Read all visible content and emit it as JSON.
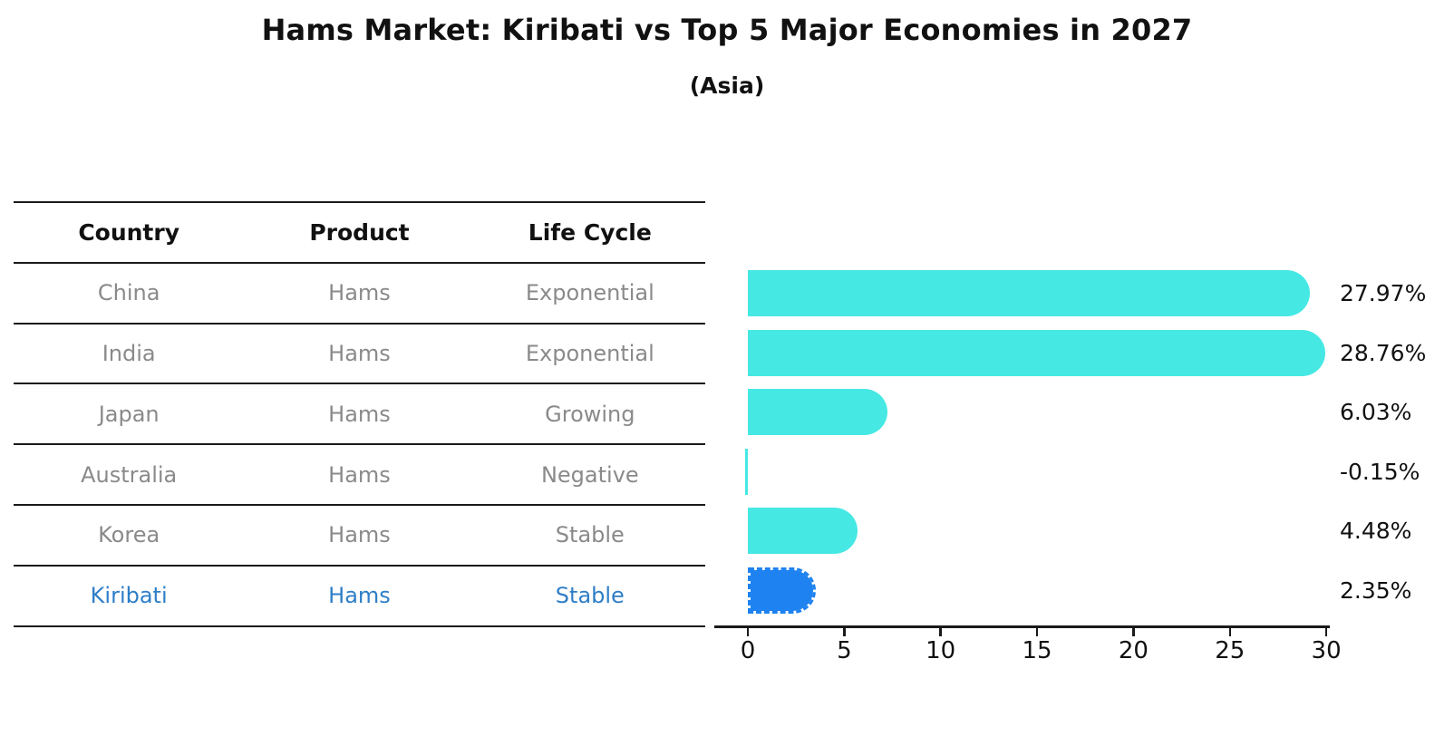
{
  "title": "Hams Market: Kiribati vs Top 5 Major Economies in 2027",
  "subtitle": "(Asia)",
  "colors": {
    "bar": "#46E8E4",
    "bar_highlight": "#1E82F0",
    "highlight_text": "#2E7EC7",
    "row_text": "#8A8A8A",
    "ink": "#111111"
  },
  "table": {
    "headers": [
      "Country",
      "Product",
      "Life Cycle"
    ],
    "rows": [
      {
        "country": "China",
        "product": "Hams",
        "life_cycle": "Exponential",
        "highlight": false
      },
      {
        "country": "India",
        "product": "Hams",
        "life_cycle": "Exponential",
        "highlight": false
      },
      {
        "country": "Japan",
        "product": "Hams",
        "life_cycle": "Growing",
        "highlight": false
      },
      {
        "country": "Australia",
        "product": "Hams",
        "life_cycle": "Negative",
        "highlight": false
      },
      {
        "country": "Korea",
        "product": "Hams",
        "life_cycle": "Stable",
        "highlight": false
      },
      {
        "country": "Kiribati",
        "product": "Hams",
        "life_cycle": "Stable",
        "highlight": true
      }
    ]
  },
  "chart_data": {
    "type": "bar",
    "orientation": "horizontal",
    "title": "Hams Market: Kiribati vs Top 5 Major Economies in 2027",
    "subtitle": "(Asia)",
    "categories": [
      "China",
      "India",
      "Japan",
      "Australia",
      "Korea",
      "Kiribati"
    ],
    "values": [
      27.97,
      28.76,
      6.03,
      -0.15,
      4.48,
      2.35
    ],
    "labels": [
      "27.97%",
      "28.76%",
      "6.03%",
      "-0.15%",
      "4.48%",
      "2.35%"
    ],
    "highlight_category": "Kiribati",
    "xlabel": "",
    "ylabel": "",
    "xlim": [
      0,
      30
    ],
    "xticks": [
      0,
      5,
      10,
      15,
      20,
      25,
      30
    ],
    "grid": false,
    "legend": false
  }
}
